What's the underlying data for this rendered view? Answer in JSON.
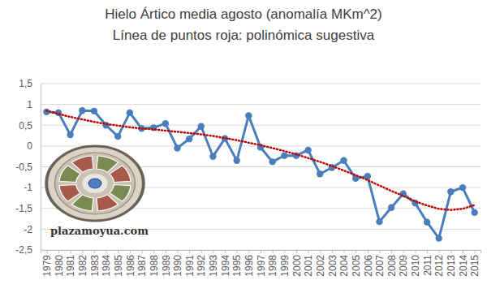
{
  "chart_data": {
    "type": "line",
    "title": "Hielo Ártico media agosto (anomalía MKm^2)",
    "subtitle": "Línea de puntos roja: polinómica sugestiva",
    "categories": [
      "1979",
      "1980",
      "1981",
      "1982",
      "1983",
      "1984",
      "1985",
      "1986",
      "1987",
      "1988",
      "1989",
      "1990",
      "1991",
      "1992",
      "1993",
      "1994",
      "1995",
      "1996",
      "1997",
      "1998",
      "1999",
      "2000",
      "2001",
      "2002",
      "2003",
      "2004",
      "2005",
      "2006",
      "2007",
      "2008",
      "2009",
      "2010",
      "2011",
      "2012",
      "2013",
      "2014",
      "2015"
    ],
    "series": [
      {
        "color": "#4a7ebb",
        "marker": "circle",
        "line_style": "solid",
        "values": [
          0.82,
          0.8,
          0.27,
          0.85,
          0.84,
          0.5,
          0.23,
          0.8,
          0.42,
          0.44,
          0.54,
          -0.05,
          0.17,
          0.47,
          -0.25,
          0.18,
          -0.35,
          0.73,
          -0.03,
          -0.38,
          -0.23,
          -0.23,
          -0.1,
          -0.67,
          -0.52,
          -0.35,
          -0.78,
          -0.73,
          -1.82,
          -1.48,
          -1.15,
          -1.37,
          -1.83,
          -2.22,
          -1.1,
          -1.0,
          -1.6
        ]
      },
      {
        "color": "#c00000",
        "marker": "none",
        "line_style": "dotted",
        "values": [
          0.85,
          0.77,
          0.7,
          0.64,
          0.58,
          0.53,
          0.49,
          0.45,
          0.42,
          0.4,
          0.37,
          0.34,
          0.31,
          0.28,
          0.24,
          0.19,
          0.14,
          0.08,
          0.02,
          -0.05,
          -0.12,
          -0.2,
          -0.29,
          -0.38,
          -0.48,
          -0.59,
          -0.7,
          -0.82,
          -0.95,
          -1.08,
          -1.2,
          -1.33,
          -1.43,
          -1.51,
          -1.54,
          -1.51,
          -1.42
        ]
      }
    ],
    "ylim": [
      -2.5,
      1.5
    ],
    "yticks": [
      {
        "value": 1.5,
        "label": "1,5"
      },
      1,
      {
        "value": 0.5,
        "label": "0,5"
      },
      0,
      {
        "value": -0.5,
        "label": "-0,5"
      },
      -1,
      {
        "value": -1.5,
        "label": "-1,5"
      },
      -2,
      {
        "value": -2.5,
        "label": "-2,5"
      }
    ],
    "grid": true,
    "annotations": [
      {
        "text": "plazamoyua.com"
      }
    ]
  }
}
